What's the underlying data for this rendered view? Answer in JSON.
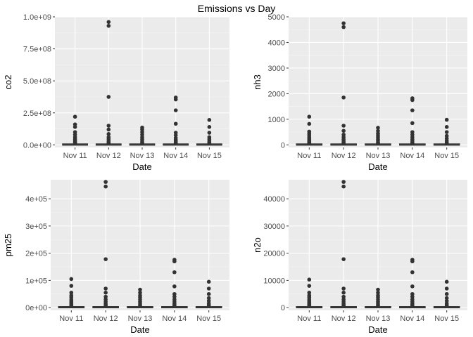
{
  "title": "Emissions vs Day",
  "colors": {
    "panel_bg": "#ebebeb",
    "grid_major": "#ffffff",
    "grid_minor": "#f5f5f5",
    "points": "#333333",
    "box": "#333333"
  },
  "chart_data": [
    {
      "type": "boxplot",
      "grid": true,
      "xlabel": "Date",
      "ylabel": "co2",
      "categories": [
        "Nov 11",
        "Nov 12",
        "Nov 13",
        "Nov 14",
        "Nov 15"
      ],
      "ylim": [
        -20000000,
        1000000000
      ],
      "yticks": [
        0,
        250000000,
        500000000,
        750000000,
        1000000000
      ],
      "ytick_labels": [
        "0.0e+00",
        "2.5e+08",
        "5.0e+08",
        "7.5e+08",
        "1.0e+09"
      ],
      "boxes": [
        {
          "q1": 0,
          "median": 1000000,
          "q3": 3000000,
          "whisker_high": 9000000,
          "outliers": [
            12000000,
            18000000,
            25000000,
            35000000,
            45000000,
            60000000,
            80000000,
            100000000,
            140000000,
            160000000,
            220000000
          ]
        },
        {
          "q1": 0,
          "median": 1000000,
          "q3": 3000000,
          "whisker_high": 9000000,
          "outliers": [
            12000000,
            20000000,
            30000000,
            45000000,
            60000000,
            85000000,
            120000000,
            150000000,
            375000000,
            930000000,
            960000000
          ]
        },
        {
          "q1": 0,
          "median": 1000000,
          "q3": 3000000,
          "whisker_high": 9000000,
          "outliers": [
            12000000,
            20000000,
            30000000,
            45000000,
            60000000,
            80000000,
            100000000,
            120000000,
            135000000
          ]
        },
        {
          "q1": 0,
          "median": 1000000,
          "q3": 3000000,
          "whisker_high": 9000000,
          "outliers": [
            12000000,
            20000000,
            30000000,
            40000000,
            55000000,
            75000000,
            95000000,
            165000000,
            270000000,
            355000000,
            370000000
          ]
        },
        {
          "q1": 0,
          "median": 1000000,
          "q3": 3000000,
          "whisker_high": 9000000,
          "outliers": [
            12000000,
            20000000,
            30000000,
            45000000,
            60000000,
            95000000,
            140000000,
            195000000
          ]
        }
      ]
    },
    {
      "type": "boxplot",
      "grid": true,
      "xlabel": "Date",
      "ylabel": "nh3",
      "categories": [
        "Nov 11",
        "Nov 12",
        "Nov 13",
        "Nov 14",
        "Nov 15"
      ],
      "ylim": [
        -100,
        5000
      ],
      "yticks": [
        0,
        1000,
        2000,
        3000,
        4000,
        5000
      ],
      "ytick_labels": [
        "0",
        "1000",
        "2000",
        "3000",
        "4000",
        "5000"
      ],
      "boxes": [
        {
          "q1": 0,
          "median": 5,
          "q3": 15,
          "whisker_high": 45,
          "outliers": [
            60,
            90,
            130,
            180,
            240,
            300,
            380,
            450,
            520,
            820,
            1100
          ]
        },
        {
          "q1": 0,
          "median": 5,
          "q3": 15,
          "whisker_high": 45,
          "outliers": [
            60,
            100,
            150,
            220,
            300,
            400,
            550,
            750,
            1850,
            4600,
            4750
          ]
        },
        {
          "q1": 0,
          "median": 5,
          "q3": 15,
          "whisker_high": 45,
          "outliers": [
            60,
            100,
            160,
            220,
            300,
            380,
            450,
            550,
            670
          ]
        },
        {
          "q1": 0,
          "median": 5,
          "q3": 15,
          "whisker_high": 45,
          "outliers": [
            60,
            100,
            150,
            220,
            300,
            400,
            500,
            850,
            1350,
            1750,
            1820
          ]
        },
        {
          "q1": 0,
          "median": 5,
          "q3": 15,
          "whisker_high": 45,
          "outliers": [
            60,
            100,
            160,
            250,
            350,
            500,
            700,
            980
          ]
        }
      ]
    },
    {
      "type": "boxplot",
      "grid": true,
      "xlabel": "Date",
      "ylabel": "pm25",
      "categories": [
        "Nov 11",
        "Nov 12",
        "Nov 13",
        "Nov 14",
        "Nov 15"
      ],
      "ylim": [
        -10000,
        470000
      ],
      "yticks": [
        0,
        100000,
        200000,
        300000,
        400000
      ],
      "ytick_labels": [
        "0e+00",
        "1e+05",
        "2e+05",
        "3e+05",
        "4e+05"
      ],
      "boxes": [
        {
          "q1": 0,
          "median": 500,
          "q3": 1500,
          "whisker_high": 4000,
          "outliers": [
            6000,
            9000,
            13000,
            18000,
            24000,
            30000,
            38000,
            45000,
            55000,
            80000,
            105000
          ]
        },
        {
          "q1": 0,
          "median": 500,
          "q3": 1500,
          "whisker_high": 4000,
          "outliers": [
            6000,
            10000,
            15000,
            22000,
            30000,
            40000,
            55000,
            70000,
            178000,
            445000,
            462000
          ]
        },
        {
          "q1": 0,
          "median": 500,
          "q3": 1500,
          "whisker_high": 4000,
          "outliers": [
            6000,
            10000,
            16000,
            22000,
            30000,
            38000,
            45000,
            55000,
            66000
          ]
        },
        {
          "q1": 0,
          "median": 500,
          "q3": 1500,
          "whisker_high": 4000,
          "outliers": [
            6000,
            10000,
            15000,
            22000,
            30000,
            40000,
            50000,
            78000,
            130000,
            170000,
            176000
          ]
        },
        {
          "q1": 0,
          "median": 500,
          "q3": 1500,
          "whisker_high": 4000,
          "outliers": [
            6000,
            10000,
            16000,
            25000,
            35000,
            50000,
            70000,
            95000
          ]
        }
      ]
    },
    {
      "type": "boxplot",
      "grid": true,
      "xlabel": "Date",
      "ylabel": "n2o",
      "categories": [
        "Nov 11",
        "Nov 12",
        "Nov 13",
        "Nov 14",
        "Nov 15"
      ],
      "ylim": [
        -1000,
        47000
      ],
      "yticks": [
        0,
        10000,
        20000,
        30000,
        40000
      ],
      "ytick_labels": [
        "0",
        "10000",
        "20000",
        "30000",
        "40000"
      ],
      "boxes": [
        {
          "q1": 0,
          "median": 50,
          "q3": 150,
          "whisker_high": 400,
          "outliers": [
            600,
            900,
            1300,
            1800,
            2400,
            3000,
            3800,
            4500,
            5500,
            8000,
            10300
          ]
        },
        {
          "q1": 0,
          "median": 50,
          "q3": 150,
          "whisker_high": 400,
          "outliers": [
            600,
            1000,
            1500,
            2200,
            3000,
            4000,
            5500,
            7000,
            17800,
            44500,
            46200
          ]
        },
        {
          "q1": 0,
          "median": 50,
          "q3": 150,
          "whisker_high": 400,
          "outliers": [
            600,
            1000,
            1600,
            2200,
            3000,
            3800,
            4500,
            5500,
            6600
          ]
        },
        {
          "q1": 0,
          "median": 50,
          "q3": 150,
          "whisker_high": 400,
          "outliers": [
            600,
            1000,
            1500,
            2200,
            3000,
            4000,
            5000,
            7800,
            13000,
            17000,
            17600
          ]
        },
        {
          "q1": 0,
          "median": 50,
          "q3": 150,
          "whisker_high": 400,
          "outliers": [
            600,
            1000,
            1600,
            2500,
            3500,
            5000,
            7000,
            9500
          ]
        }
      ]
    }
  ]
}
